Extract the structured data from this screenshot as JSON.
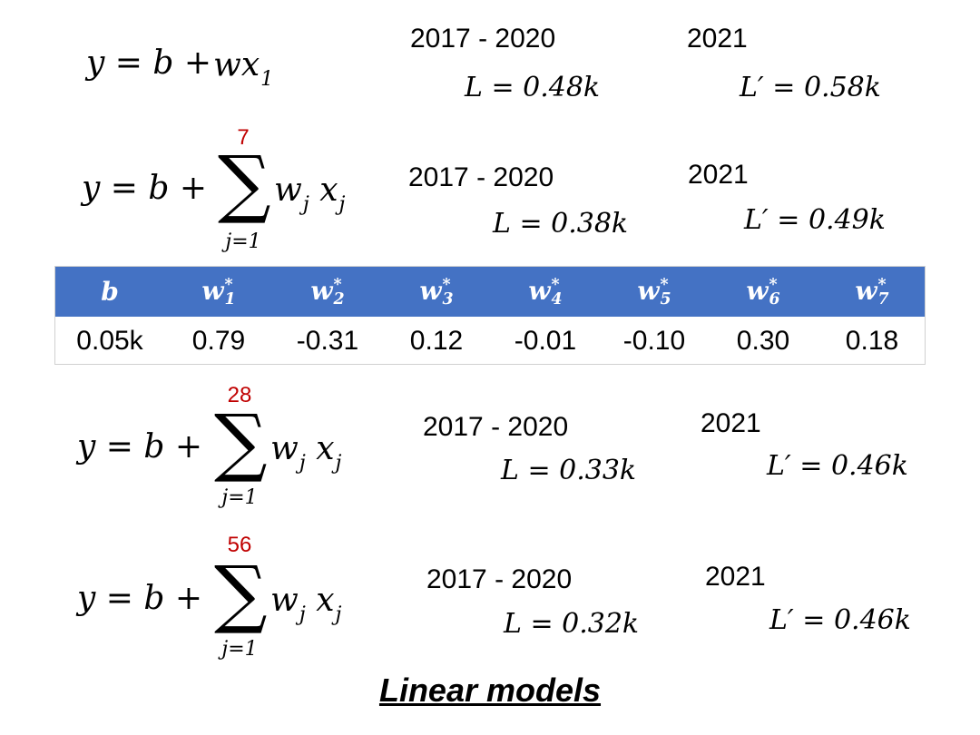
{
  "models": [
    {
      "lhs": "y = b +",
      "terms": [
        {
          "base": "w"
        },
        {
          "base": "x",
          "sub": "1"
        }
      ],
      "period": "2017 - 2020",
      "loss": "L = 0.48k",
      "period2": "2021",
      "loss2": "L′ = 0.58k"
    },
    {
      "lhs": "y = b +",
      "sigma": "∑",
      "upper": "7",
      "lower": "j=1",
      "terms": [
        {
          "base": "w",
          "sub": "j"
        },
        {
          "base": "x",
          "sub": "j"
        }
      ],
      "period": "2017 - 2020",
      "loss": "L = 0.38k",
      "period2": "2021",
      "loss2": "L′ = 0.49k"
    },
    {
      "lhs": "y = b +",
      "sigma": "∑",
      "upper": "28",
      "lower": "j=1",
      "terms": [
        {
          "base": "w",
          "sub": "j"
        },
        {
          "base": "x",
          "sub": "j"
        }
      ],
      "period": "2017 - 2020",
      "loss": "L = 0.33k",
      "period2": "2021",
      "loss2": "L′ = 0.46k"
    },
    {
      "lhs": "y = b +",
      "sigma": "∑",
      "upper": "56",
      "lower": "j=1",
      "terms": [
        {
          "base": "w",
          "sub": "j"
        },
        {
          "base": "x",
          "sub": "j"
        }
      ],
      "period": "2017 - 2020",
      "loss": "L = 0.32k",
      "period2": "2021",
      "loss2": "L′ = 0.46k"
    }
  ],
  "table": {
    "header": [
      {
        "base": "b"
      },
      {
        "base": "w",
        "sup": "*",
        "sub": "1"
      },
      {
        "base": "w",
        "sup": "*",
        "sub": "2"
      },
      {
        "base": "w",
        "sup": "*",
        "sub": "3"
      },
      {
        "base": "w",
        "sup": "*",
        "sub": "4"
      },
      {
        "base": "w",
        "sup": "*",
        "sub": "5"
      },
      {
        "base": "w",
        "sup": "*",
        "sub": "6"
      },
      {
        "base": "w",
        "sup": "*",
        "sub": "7"
      }
    ],
    "rows": [
      [
        "0.05k",
        "0.79",
        "-0.31",
        "0.12",
        "-0.01",
        "-0.10",
        "0.30",
        "0.18"
      ]
    ]
  },
  "title": "Linear models"
}
